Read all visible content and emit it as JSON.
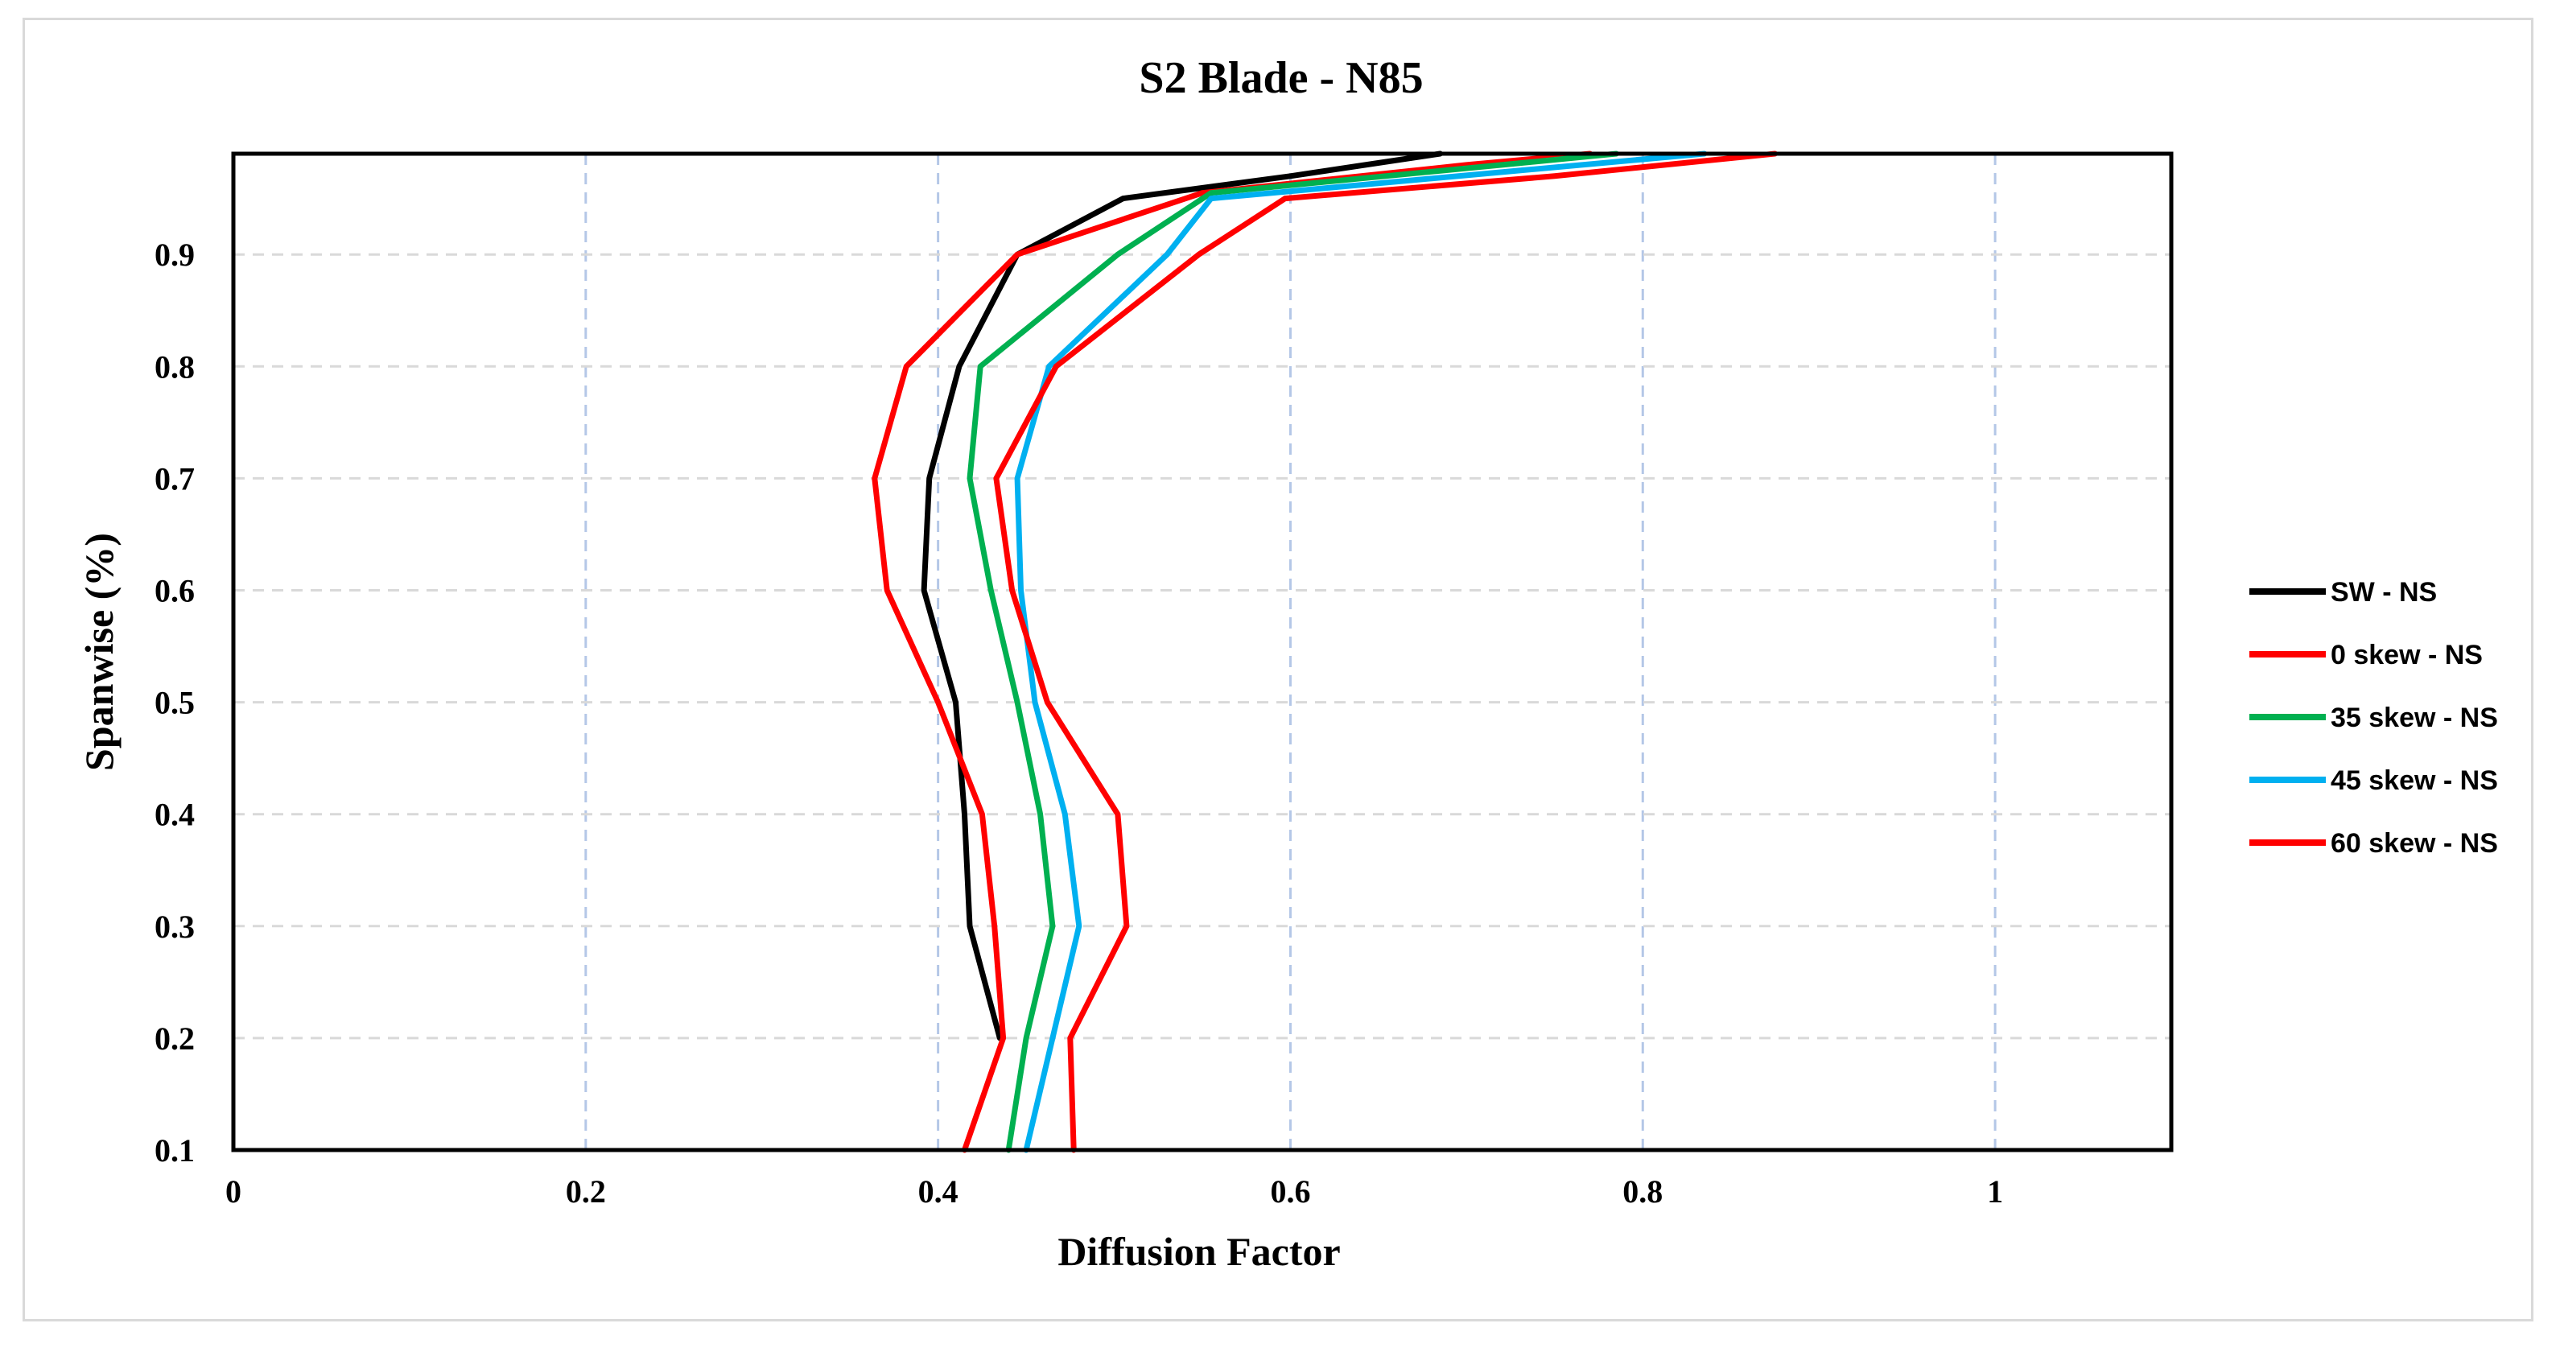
{
  "chart_data": {
    "type": "line",
    "title": "S2 Blade - N85",
    "xlabel": "Diffusion Factor",
    "ylabel": "Spanwise (%)",
    "xlim": [
      0,
      1.1
    ],
    "ylim": [
      0.1,
      0.99
    ],
    "x_ticks": [
      0,
      0.2,
      0.4,
      0.6,
      0.8,
      1
    ],
    "x_tick_labels": [
      "0",
      "0.2",
      "0.4",
      "0.6",
      "0.8",
      "1"
    ],
    "y_ticks": [
      0.1,
      0.2,
      0.3,
      0.4,
      0.5,
      0.6,
      0.7,
      0.8,
      0.9
    ],
    "y_tick_labels": [
      "0.1",
      "0.2",
      "0.3",
      "0.4",
      "0.5",
      "0.6",
      "0.7",
      "0.8",
      "0.9"
    ],
    "grid": true,
    "legend_position": "right",
    "series": [
      {
        "name": "SW - NS",
        "color": "#000000",
        "points": [
          [
            0.435,
            0.2
          ],
          [
            0.418,
            0.3
          ],
          [
            0.415,
            0.4
          ],
          [
            0.41,
            0.5
          ],
          [
            0.392,
            0.6
          ],
          [
            0.395,
            0.7
          ],
          [
            0.412,
            0.8
          ],
          [
            0.445,
            0.9
          ],
          [
            0.505,
            0.95
          ],
          [
            0.6,
            0.97
          ],
          [
            0.685,
            0.99
          ]
        ]
      },
      {
        "name": "0 skew - NS",
        "color": "#ff0000",
        "points": [
          [
            0.415,
            0.1
          ],
          [
            0.437,
            0.2
          ],
          [
            0.432,
            0.3
          ],
          [
            0.425,
            0.4
          ],
          [
            0.4,
            0.5
          ],
          [
            0.371,
            0.6
          ],
          [
            0.364,
            0.7
          ],
          [
            0.382,
            0.8
          ],
          [
            0.445,
            0.9
          ],
          [
            0.55,
            0.955
          ],
          [
            0.7,
            0.98
          ],
          [
            0.77,
            0.99
          ]
        ]
      },
      {
        "name": "35 skew - NS",
        "color": "#00b050",
        "points": [
          [
            0.44,
            0.1
          ],
          [
            0.45,
            0.2
          ],
          [
            0.465,
            0.3
          ],
          [
            0.458,
            0.4
          ],
          [
            0.445,
            0.5
          ],
          [
            0.43,
            0.6
          ],
          [
            0.418,
            0.7
          ],
          [
            0.424,
            0.8
          ],
          [
            0.502,
            0.9
          ],
          [
            0.555,
            0.955
          ],
          [
            0.72,
            0.98
          ],
          [
            0.785,
            0.99
          ]
        ]
      },
      {
        "name": "45 skew - NS",
        "color": "#00b0f0",
        "points": [
          [
            0.45,
            0.1
          ],
          [
            0.465,
            0.2
          ],
          [
            0.48,
            0.3
          ],
          [
            0.472,
            0.4
          ],
          [
            0.455,
            0.5
          ],
          [
            0.447,
            0.6
          ],
          [
            0.445,
            0.7
          ],
          [
            0.463,
            0.8
          ],
          [
            0.53,
            0.9
          ],
          [
            0.555,
            0.95
          ],
          [
            0.73,
            0.975
          ],
          [
            0.835,
            0.99
          ]
        ]
      },
      {
        "name": "60 skew - NS",
        "color": "#ff0000",
        "points": [
          [
            0.477,
            0.1
          ],
          [
            0.475,
            0.2
          ],
          [
            0.507,
            0.3
          ],
          [
            0.502,
            0.4
          ],
          [
            0.462,
            0.5
          ],
          [
            0.442,
            0.6
          ],
          [
            0.433,
            0.7
          ],
          [
            0.467,
            0.8
          ],
          [
            0.548,
            0.9
          ],
          [
            0.597,
            0.95
          ],
          [
            0.75,
            0.97
          ],
          [
            0.875,
            0.99
          ]
        ]
      }
    ]
  }
}
